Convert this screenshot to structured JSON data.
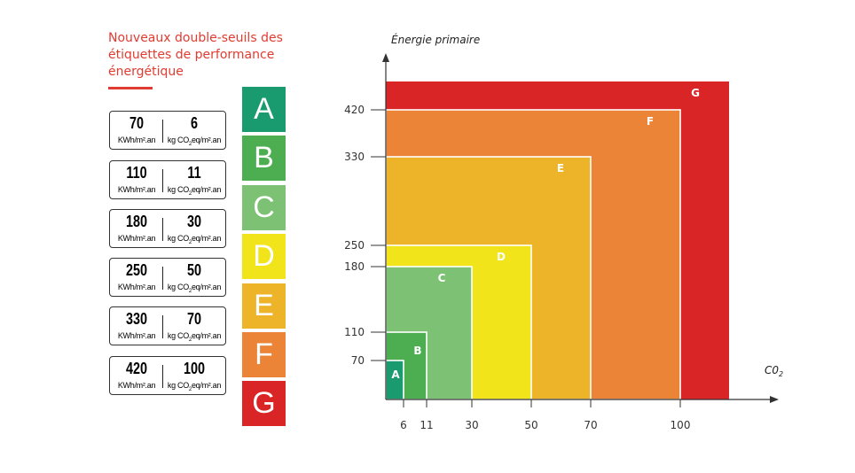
{
  "title": "Nouveaux double-seuils des étiquettes de performance énergétique",
  "colors": {
    "A": "#1a9a6f",
    "B": "#4cae50",
    "C": "#7dc274",
    "D": "#f1e41b",
    "E": "#edb42a",
    "F": "#eb8436",
    "G": "#da2526",
    "accent": "#e03c31"
  },
  "thresholds": [
    {
      "energy": "70",
      "energy_unit": "KWh/m².an",
      "co2": "6",
      "co2_unit_pre": "kg CO",
      "co2_unit_sub": "2",
      "co2_unit_post": "eq/m².an"
    },
    {
      "energy": "110",
      "energy_unit": "KWh/m².an",
      "co2": "11",
      "co2_unit_pre": "kg CO",
      "co2_unit_sub": "2",
      "co2_unit_post": "eq/m².an"
    },
    {
      "energy": "180",
      "energy_unit": "KWh/m².an",
      "co2": "30",
      "co2_unit_pre": "kg CO",
      "co2_unit_sub": "2",
      "co2_unit_post": "eq/m².an"
    },
    {
      "energy": "250",
      "energy_unit": "KWh/m².an",
      "co2": "50",
      "co2_unit_pre": "kg CO",
      "co2_unit_sub": "2",
      "co2_unit_post": "eq/m².an"
    },
    {
      "energy": "330",
      "energy_unit": "KWh/m².an",
      "co2": "70",
      "co2_unit_pre": "kg CO",
      "co2_unit_sub": "2",
      "co2_unit_post": "eq/m².an"
    },
    {
      "energy": "420",
      "energy_unit": "KWh/m².an",
      "co2": "100",
      "co2_unit_pre": "kg CO",
      "co2_unit_sub": "2",
      "co2_unit_post": "eq/m².an"
    }
  ],
  "classes": [
    "A",
    "B",
    "C",
    "D",
    "E",
    "F",
    "G"
  ],
  "chart_data": {
    "type": "area",
    "ylabel": "Énergie primaire",
    "xlabel_main": "C0",
    "xlabel_sub": "2",
    "x_ticks": [
      "6",
      "11",
      "30",
      "50",
      "70",
      "100"
    ],
    "y_ticks": [
      "70",
      "110",
      "180",
      "250",
      "330",
      "420"
    ],
    "zones": [
      {
        "label": "G",
        "co2_max": null,
        "energy_max": null
      },
      {
        "label": "F",
        "co2_max": 100,
        "energy_max": 420
      },
      {
        "label": "E",
        "co2_max": 70,
        "energy_max": 330
      },
      {
        "label": "D",
        "co2_max": 50,
        "energy_max": 250
      },
      {
        "label": "C",
        "co2_max": 30,
        "energy_max": 180
      },
      {
        "label": "B",
        "co2_max": 11,
        "energy_max": 110
      },
      {
        "label": "A",
        "co2_max": 6,
        "energy_max": 70
      }
    ]
  }
}
